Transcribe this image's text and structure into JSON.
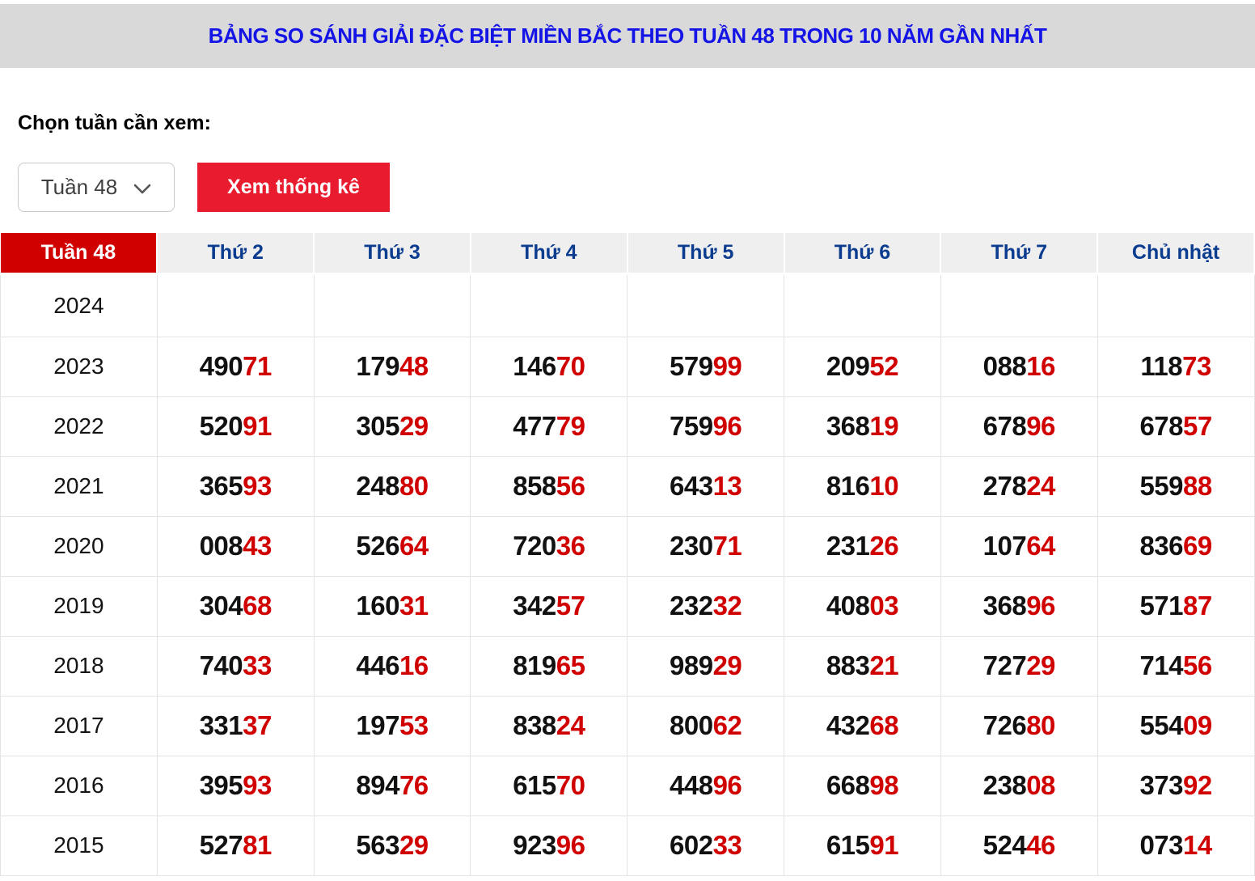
{
  "header": {
    "title": "BẢNG SO SÁNH GIẢI ĐẶC BIỆT MIỀN BẮC THEO TUẦN 48 TRONG 10 NĂM GẦN NHẤT"
  },
  "controls": {
    "label": "Chọn tuần cần xem:",
    "week_select": {
      "value": "Tuần 48"
    },
    "submit_button": "Xem thống kê"
  },
  "table": {
    "columns": [
      "Tuần 48",
      "Thứ 2",
      "Thứ 3",
      "Thứ 4",
      "Thứ 5",
      "Thứ 6",
      "Thứ 7",
      "Chủ nhật"
    ],
    "red_digit_count": 2,
    "rows": [
      {
        "year": "2024",
        "values": [
          "",
          "",
          "",
          "",
          "",
          "",
          ""
        ]
      },
      {
        "year": "2023",
        "values": [
          "49071",
          "17948",
          "14670",
          "57999",
          "20952",
          "08816",
          "11873"
        ]
      },
      {
        "year": "2022",
        "values": [
          "52091",
          "30529",
          "47779",
          "75996",
          "36819",
          "67896",
          "67857"
        ]
      },
      {
        "year": "2021",
        "values": [
          "36593",
          "24880",
          "85856",
          "64313",
          "81610",
          "27824",
          "55988"
        ]
      },
      {
        "year": "2020",
        "values": [
          "00843",
          "52664",
          "72036",
          "23071",
          "23126",
          "10764",
          "83669"
        ]
      },
      {
        "year": "2019",
        "values": [
          "30468",
          "16031",
          "34257",
          "23232",
          "40803",
          "36896",
          "57187"
        ]
      },
      {
        "year": "2018",
        "values": [
          "74033",
          "44616",
          "81965",
          "98929",
          "88321",
          "72729",
          "71456"
        ]
      },
      {
        "year": "2017",
        "values": [
          "33137",
          "19753",
          "83824",
          "80062",
          "43268",
          "72680",
          "55409"
        ]
      },
      {
        "year": "2016",
        "values": [
          "39593",
          "89476",
          "61570",
          "44896",
          "66898",
          "23808",
          "37392"
        ]
      },
      {
        "year": "2015",
        "values": [
          "52781",
          "56329",
          "92396",
          "60233",
          "61591",
          "52446",
          "07314"
        ]
      }
    ]
  },
  "colors": {
    "title_text": "#1414e6",
    "title_bar_bg": "#d9d9d9",
    "column_header_text": "#0b3c8f",
    "column_header_bg": "#efefef",
    "week_cell_bg": "#d10000",
    "week_cell_text": "#ffffff",
    "button_bg": "#e81c2e",
    "button_text": "#ffffff",
    "digit_black": "#111111",
    "digit_red": "#d10000",
    "border": "#e4e4e4"
  }
}
